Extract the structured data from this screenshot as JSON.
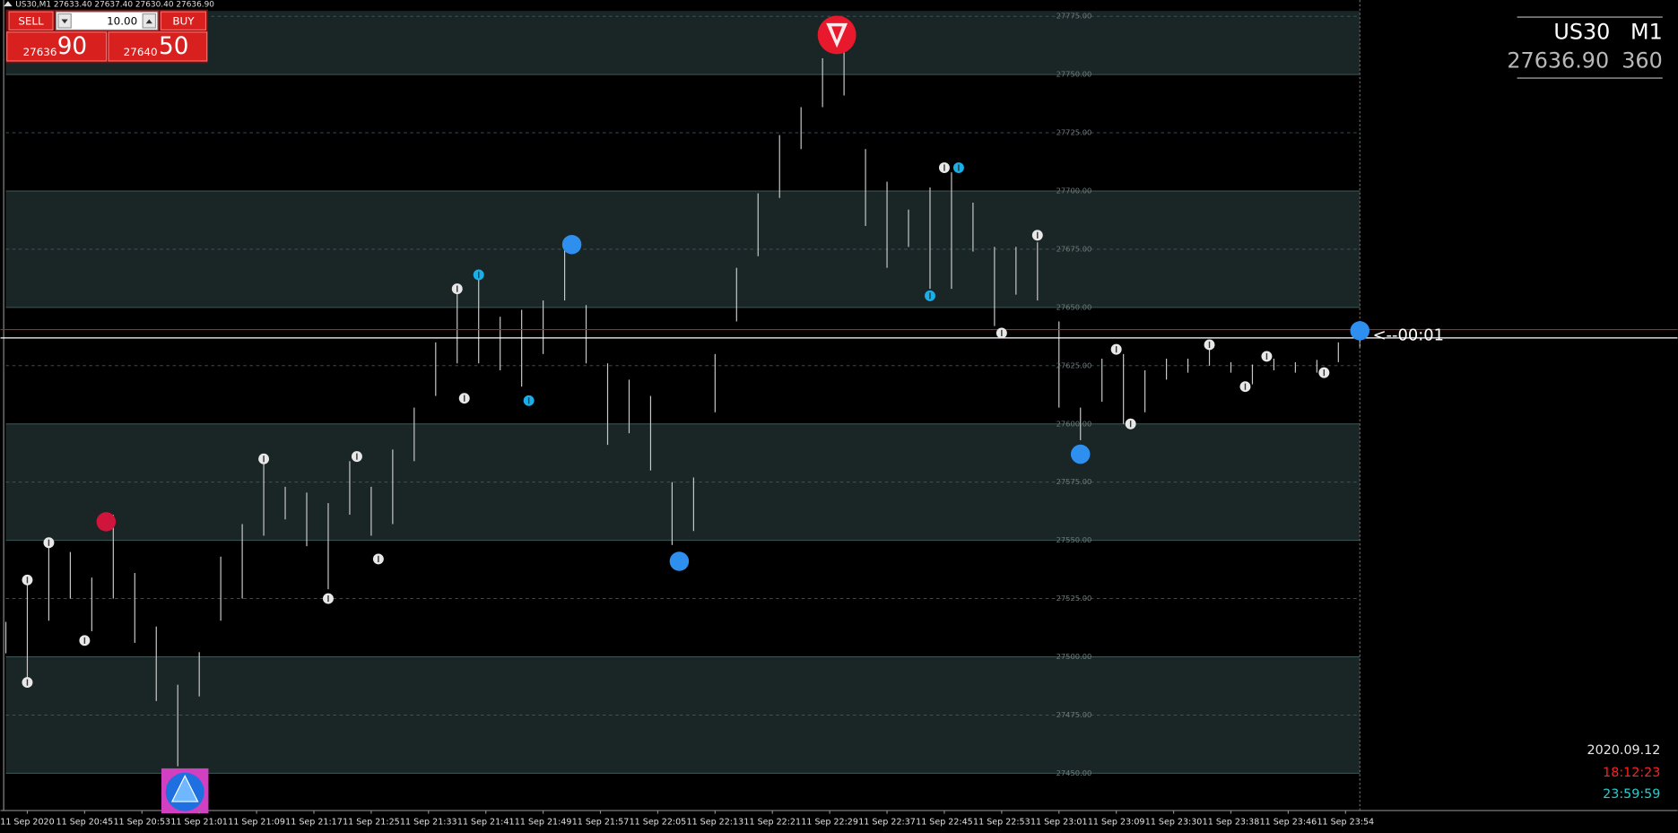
{
  "header": "US30,M1  27633.40 27637.40 27630.40 27636.90",
  "trade_panel": {
    "sell": "SELL",
    "buy": "BUY",
    "lots": "10.00",
    "sell_big": "27636",
    "sell_small": "90",
    "buy_big": "27640",
    "buy_small": "50"
  },
  "info": {
    "symbol": "US30",
    "period": "M1",
    "price": "27636.90",
    "spread": "360",
    "date": "2020.09.12",
    "time": "18:12:23",
    "countdown_time": "23:59:59"
  },
  "chart_data": {
    "type": "ohlc",
    "bar_color": "#c8c8c8",
    "x": [
      -3,
      0,
      3,
      6,
      9,
      12,
      15,
      18,
      21,
      24,
      27,
      30,
      33,
      36,
      39,
      42,
      45,
      48,
      51,
      54,
      57,
      60,
      63,
      66,
      69,
      72,
      75,
      78,
      81,
      84,
      87,
      90,
      93,
      96,
      99,
      102,
      105,
      108,
      111,
      114,
      117,
      120,
      123,
      126,
      129,
      132,
      135,
      138,
      141,
      144,
      147,
      150,
      153,
      156,
      159,
      162,
      165,
      168,
      171,
      174,
      177,
      180,
      183,
      186
    ],
    "high": [
      27515,
      27534,
      27550,
      27545,
      27534,
      27561,
      27536,
      27513,
      27488,
      27502,
      27543,
      27557,
      27587,
      27573,
      27570.5,
      27566,
      27584,
      27573,
      27589,
      27607,
      27635,
      27660,
      27662,
      27646,
      27649,
      27653,
      27676,
      27651,
      27626,
      27619,
      27612,
      27575,
      27577,
      27630,
      27667,
      27699,
      27724,
      27736,
      27757,
      27761,
      27718,
      27704,
      27692,
      27701.5,
      27708,
      27695,
      27676,
      27676,
      27678,
      27644,
      27607,
      27628,
      27630,
      27623,
      27628,
      27628,
      27632.5,
      27626.5,
      27625.5,
      27628,
      27626.5,
      27627.5,
      27635,
      27639.5
    ],
    "low": [
      27501.5,
      27488,
      27515.5,
      27525,
      27511,
      27525,
      27506,
      27481,
      27453,
      27483,
      27515.5,
      27525,
      27552,
      27559,
      27547.5,
      27529,
      27561,
      27552,
      27557,
      27584,
      27612,
      27626,
      27626,
      27623,
      27616,
      27630,
      27653,
      27626,
      27591,
      27596,
      27580,
      27548,
      27554,
      27605,
      27644,
      27672,
      27697,
      27718,
      27736,
      27741,
      27685,
      27667,
      27676,
      27658,
      27658,
      27674,
      27642,
      27655.5,
      27653,
      27607,
      27593,
      27609.5,
      27600,
      27605,
      27619,
      27622,
      27625,
      27622,
      27617,
      27623,
      27622,
      27622,
      27626.5,
      27632.5
    ],
    "xlim": [
      -3,
      186
    ],
    "ylim": [
      27434,
      27782
    ],
    "xticks": [
      {
        "value": 0,
        "label": "11 Sep 2020"
      },
      {
        "value": 8,
        "label": "11 Sep 20:45"
      },
      {
        "value": 16,
        "label": "11 Sep 20:53"
      },
      {
        "value": 24,
        "label": "11 Sep 21:01"
      },
      {
        "value": 32,
        "label": "11 Sep 21:09"
      },
      {
        "value": 40,
        "label": "11 Sep 21:17"
      },
      {
        "value": 48,
        "label": "11 Sep 21:25"
      },
      {
        "value": 56,
        "label": "11 Sep 21:33"
      },
      {
        "value": 64,
        "label": "11 Sep 21:41"
      },
      {
        "value": 72,
        "label": "11 Sep 21:49"
      },
      {
        "value": 80,
        "label": "11 Sep 21:57"
      },
      {
        "value": 88,
        "label": "11 Sep 22:05"
      },
      {
        "value": 96,
        "label": "11 Sep 22:13"
      },
      {
        "value": 104,
        "label": "11 Sep 22:21"
      },
      {
        "value": 112,
        "label": "11 Sep 22:29"
      },
      {
        "value": 120,
        "label": "11 Sep 22:37"
      },
      {
        "value": 128,
        "label": "11 Sep 22:45"
      },
      {
        "value": 136,
        "label": "11 Sep 22:53"
      },
      {
        "value": 144,
        "label": "11 Sep 23:01"
      },
      {
        "value": 152,
        "label": "11 Sep 23:09"
      },
      {
        "value": 160,
        "label": "11 Sep 23:30"
      },
      {
        "value": 168,
        "label": "11 Sep 23:38"
      },
      {
        "value": 176,
        "label": "11 Sep 23:46"
      },
      {
        "value": 184,
        "label": "11 Sep 23:54"
      }
    ],
    "yticks": [
      {
        "value": 27775,
        "label": "27775.00"
      },
      {
        "value": 27750,
        "label": "27750.00"
      },
      {
        "value": 27725,
        "label": "27725.00"
      },
      {
        "value": 27700,
        "label": "27700.00"
      },
      {
        "value": 27675,
        "label": "27675.00"
      },
      {
        "value": 27650,
        "label": "27650.00"
      },
      {
        "value": 27625,
        "label": "27625.00"
      },
      {
        "value": 27600,
        "label": "27600.00"
      },
      {
        "value": 27575,
        "label": "27575.00"
      },
      {
        "value": 27550,
        "label": "27550.00"
      },
      {
        "value": 27525,
        "label": "27525.00"
      },
      {
        "value": 27500,
        "label": "27500.00"
      },
      {
        "value": 27475,
        "label": "27475.00"
      },
      {
        "value": 27450,
        "label": "27450.00"
      }
    ],
    "bid": 27636.9,
    "bid_color": "#ffffff",
    "ask": 27640.5,
    "ask_color": "#e01010",
    "countdown": "<--00:01",
    "signals": [
      {
        "x": 113,
        "y": 27767,
        "shape": "sell-arrow",
        "color": "#e8192c"
      },
      {
        "x": 22,
        "y": 27442,
        "shape": "buy-arrow",
        "color": "#1e6fe0"
      },
      {
        "x": 11,
        "y": 27558,
        "shape": "dot",
        "color": "#d0143c"
      },
      {
        "x": 76,
        "y": 27677,
        "shape": "dot",
        "color": "#2f8fef"
      },
      {
        "x": 91,
        "y": 27541,
        "shape": "dot",
        "color": "#2f8fef"
      },
      {
        "x": 147,
        "y": 27587,
        "shape": "dot",
        "color": "#2f8fef"
      },
      {
        "x": 186,
        "y": 27640,
        "shape": "dot",
        "color": "#2f8fef"
      },
      {
        "x": 0,
        "y": 27489,
        "shape": "fractal",
        "color": "#e8e8e8"
      },
      {
        "x": 0,
        "y": 27533,
        "shape": "fractal",
        "color": "#e8e8e8"
      },
      {
        "x": 3,
        "y": 27549,
        "shape": "fractal",
        "color": "#e8e8e8"
      },
      {
        "x": 8,
        "y": 27507,
        "shape": "fractal",
        "color": "#e8e8e8"
      },
      {
        "x": 33,
        "y": 27585,
        "shape": "fractal",
        "color": "#e8e8e8"
      },
      {
        "x": 42,
        "y": 27525,
        "shape": "fractal",
        "color": "#e8e8e8"
      },
      {
        "x": 46,
        "y": 27586,
        "shape": "fractal",
        "color": "#e8e8e8"
      },
      {
        "x": 49,
        "y": 27542,
        "shape": "fractal",
        "color": "#e8e8e8"
      },
      {
        "x": 60,
        "y": 27658,
        "shape": "fractal",
        "color": "#e8e8e8"
      },
      {
        "x": 61,
        "y": 27611,
        "shape": "fractal",
        "color": "#e8e8e8"
      },
      {
        "x": 128,
        "y": 27710,
        "shape": "fractal",
        "color": "#e8e8e8"
      },
      {
        "x": 136,
        "y": 27639,
        "shape": "fractal",
        "color": "#e8e8e8"
      },
      {
        "x": 141,
        "y": 27681,
        "shape": "fractal",
        "color": "#e8e8e8"
      },
      {
        "x": 152,
        "y": 27632,
        "shape": "fractal",
        "color": "#e8e8e8"
      },
      {
        "x": 154,
        "y": 27600,
        "shape": "fractal",
        "color": "#e8e8e8"
      },
      {
        "x": 165,
        "y": 27634,
        "shape": "fractal",
        "color": "#e8e8e8"
      },
      {
        "x": 170,
        "y": 27616,
        "shape": "fractal",
        "color": "#e8e8e8"
      },
      {
        "x": 173,
        "y": 27629,
        "shape": "fractal",
        "color": "#e8e8e8"
      },
      {
        "x": 181,
        "y": 27622,
        "shape": "fractal",
        "color": "#e8e8e8"
      },
      {
        "x": 63,
        "y": 27664,
        "shape": "fractal",
        "color": "#18b0e8"
      },
      {
        "x": 70,
        "y": 27610,
        "shape": "fractal",
        "color": "#18b0e8"
      },
      {
        "x": 126,
        "y": 27655,
        "shape": "fractal",
        "color": "#18b0e8"
      },
      {
        "x": 130,
        "y": 27710,
        "shape": "fractal",
        "color": "#18b0e8"
      }
    ]
  }
}
